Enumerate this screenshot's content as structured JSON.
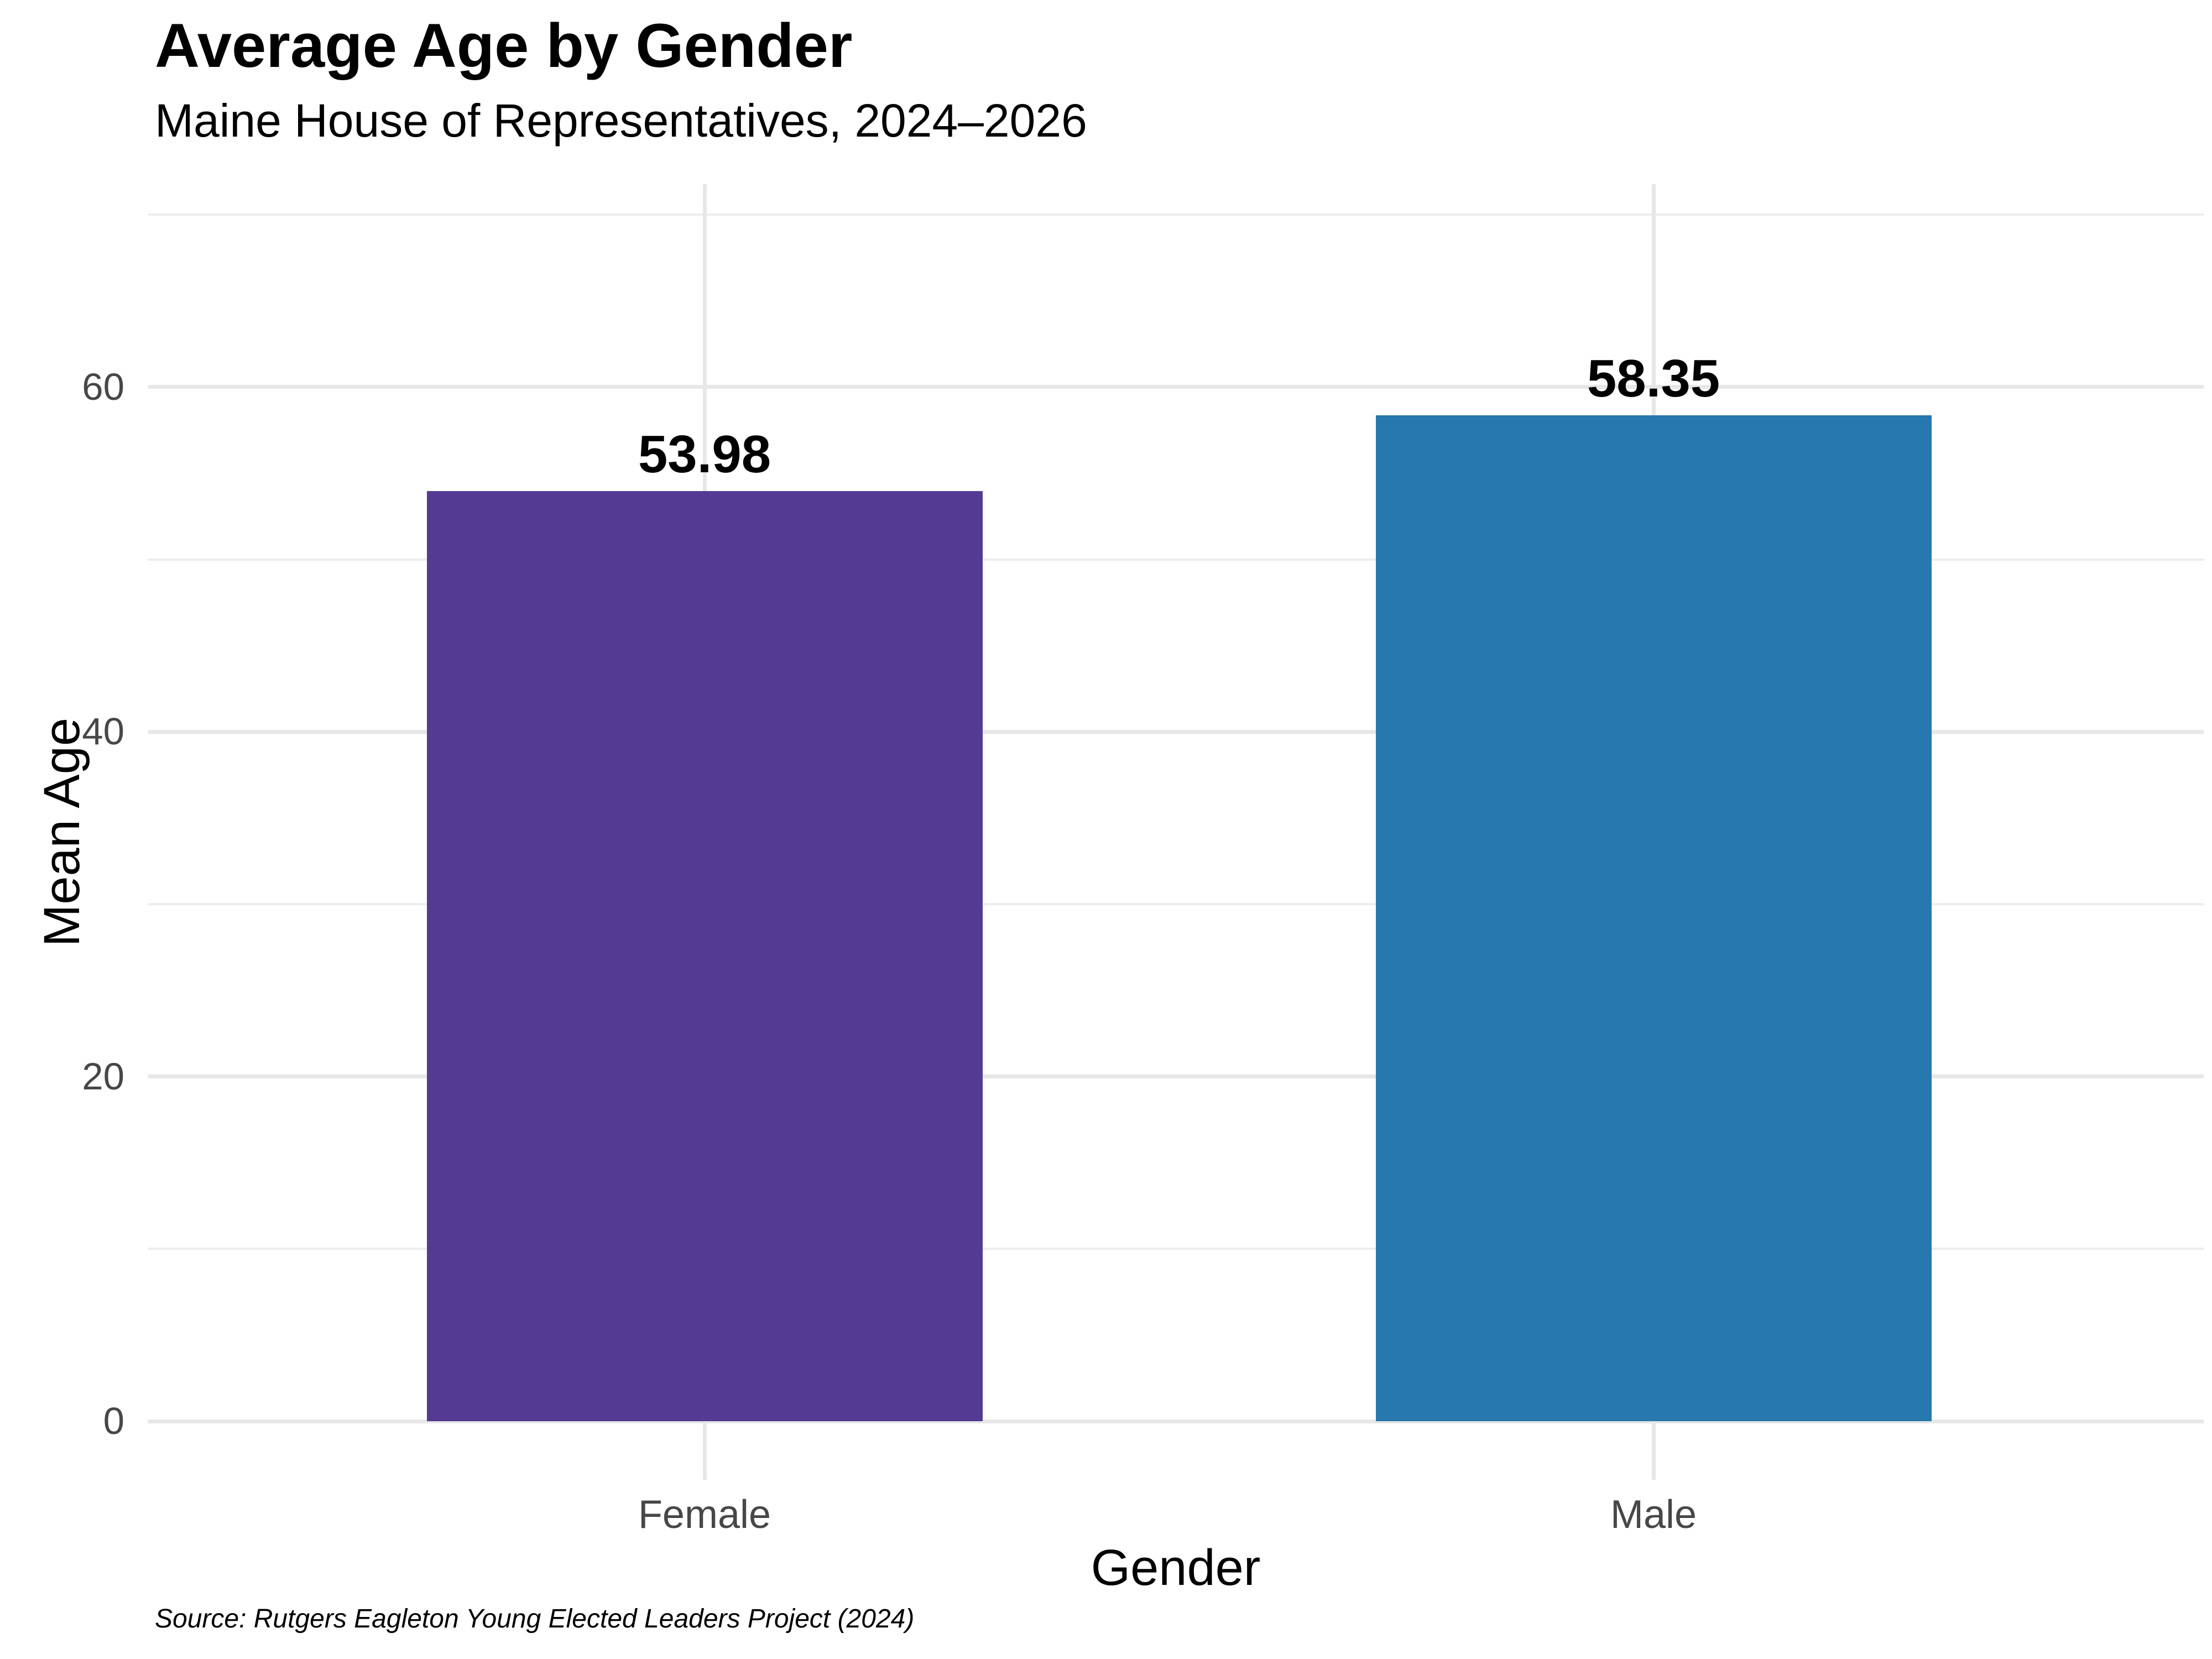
{
  "chart": {
    "title": "Average Age by Gender",
    "subtitle": "Maine House of Representatives, 2024–2026",
    "caption": "Source: Rutgers Eagleton Young Elected Leaders Project (2024)",
    "x_axis_title": "Gender",
    "y_axis_title": "Mean Age"
  },
  "chart_data": {
    "type": "bar",
    "title": "Average Age by Gender",
    "subtitle": "Maine House of Representatives, 2024–2026",
    "caption": "Source: Rutgers Eagleton Young Elected Leaders Project (2024)",
    "xlabel": "Gender",
    "ylabel": "Mean Age",
    "categories": [
      "Female",
      "Male"
    ],
    "values": [
      53.98,
      58.35
    ],
    "value_labels": [
      "53.98",
      "58.35"
    ],
    "bar_colors": [
      "#543A92",
      "#2878B0"
    ],
    "y_ticks_major": [
      0,
      20,
      40,
      60
    ],
    "y_tick_labels": [
      "0",
      "20",
      "40",
      "60"
    ],
    "y_ticks_minor": [
      10,
      30,
      50,
      70
    ],
    "ylim": [
      0,
      68.4
    ],
    "grid": "on",
    "legend": "none",
    "background_color": "#FFFFFF",
    "gridline_major_color": "#E7E7E7",
    "gridline_minor_color": "#EDEDED",
    "axis_text_color": "#474747"
  }
}
